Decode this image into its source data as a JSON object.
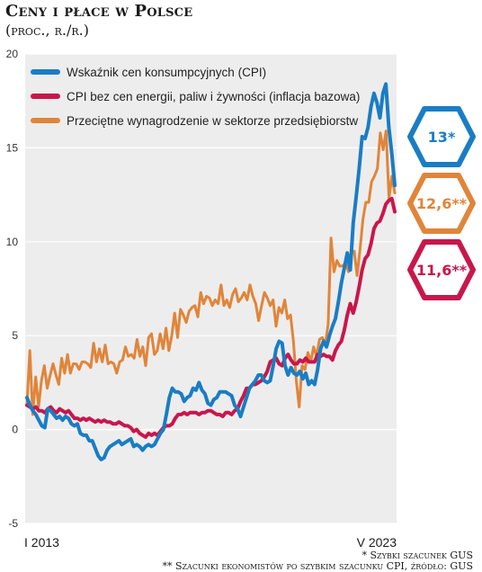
{
  "header": {
    "title": "Ceny i płace w Polsce",
    "subtitle": "(proc., r./r.)"
  },
  "footnotes": {
    "line1": "* Szybki szacunek GUS",
    "line2": "** Szacunki ekonomistów po szybkim szacunku CPI, źródło: GUS"
  },
  "colors": {
    "cpi": "#1a7dc4",
    "core": "#c8174d",
    "wages": "#e0853a",
    "plot_bg": "#ededed"
  },
  "chart_data": {
    "type": "line",
    "x_start": "I 2013",
    "x_end": "V 2023",
    "x_tick_labels": [
      "I 2013",
      "V 2023"
    ],
    "ylim": [
      -5,
      20
    ],
    "yticks": [
      -5,
      0,
      5,
      10,
      15,
      20
    ],
    "grid": true,
    "legend_position": "top-left",
    "series": [
      {
        "name": "Wskaźnik cen konsumpcyjnych (CPI)",
        "color": "#1a7dc4",
        "callout": "13*",
        "values": [
          1.7,
          1.3,
          1.0,
          0.8,
          0.5,
          0.2,
          0.1,
          1.1,
          1.0,
          0.8,
          0.6,
          0.7,
          0.5,
          0.7,
          0.6,
          0.3,
          0.2,
          0.3,
          -0.2,
          -0.3,
          -0.3,
          -0.6,
          -0.6,
          -1.0,
          -1.4,
          -1.6,
          -1.5,
          -1.1,
          -0.9,
          -0.8,
          -0.7,
          -0.6,
          -0.8,
          -0.7,
          -0.6,
          -0.5,
          -0.9,
          -0.8,
          -0.9,
          -1.1,
          -0.9,
          -0.8,
          -0.9,
          -0.8,
          -0.5,
          -0.2,
          0.0,
          0.8,
          1.7,
          2.2,
          2.0,
          2.0,
          1.9,
          1.5,
          1.7,
          1.8,
          2.2,
          2.1,
          2.5,
          2.1,
          1.9,
          1.4,
          1.3,
          1.6,
          1.7,
          2.0,
          2.0,
          2.0,
          1.9,
          1.8,
          1.3,
          1.1,
          0.7,
          1.2,
          1.7,
          2.2,
          2.4,
          2.6,
          2.9,
          2.9,
          2.6,
          2.5,
          2.6,
          3.4,
          4.3,
          4.7,
          4.6,
          3.4,
          2.9,
          3.3,
          3.0,
          2.9,
          3.1,
          2.7,
          3.0,
          2.4,
          2.6,
          2.4,
          3.2,
          4.3,
          4.7,
          4.4,
          5.0,
          5.5,
          5.9,
          6.8,
          7.8,
          8.6,
          9.4,
          8.5,
          11.0,
          12.4,
          13.9,
          15.6,
          15.5,
          16.1,
          17.2,
          17.9,
          17.4,
          16.6,
          17.9,
          18.4,
          16.1,
          14.7,
          13.0
        ]
      },
      {
        "name": "CPI bez cen energii, paliw i żywności (inflacja bazowa)",
        "color": "#c8174d",
        "callout": "11,6**",
        "values": [
          1.3,
          1.2,
          1.1,
          1.2,
          1.0,
          1.0,
          0.9,
          1.1,
          1.2,
          1.0,
          0.9,
          1.1,
          1.0,
          0.9,
          1.0,
          0.8,
          0.6,
          0.6,
          0.5,
          0.6,
          0.5,
          0.6,
          0.5,
          0.4,
          0.5,
          0.4,
          0.5,
          0.4,
          0.4,
          0.3,
          0.3,
          0.4,
          0.3,
          0.2,
          0.2,
          0.1,
          -0.1,
          0.0,
          -0.2,
          -0.3,
          -0.4,
          -0.2,
          -0.3,
          -0.2,
          -0.3,
          -0.1,
          0.1,
          0.2,
          0.2,
          0.3,
          0.6,
          0.8,
          0.8,
          0.9,
          0.8,
          0.9,
          0.9,
          0.9,
          0.8,
          0.9,
          0.9,
          1.0,
          1.0,
          0.9,
          0.8,
          0.8,
          0.7,
          0.9,
          0.9,
          0.8,
          1.0,
          1.1,
          1.5,
          1.8,
          2.2,
          2.2,
          2.4,
          2.4,
          2.5,
          2.6,
          2.8,
          3.1,
          3.6,
          3.7,
          3.8,
          3.5,
          3.4,
          3.8,
          4.0,
          3.7,
          3.5,
          3.5,
          3.7,
          3.6,
          3.8,
          3.6,
          3.6,
          3.6,
          4.0,
          3.9,
          4.0,
          3.9,
          3.9,
          3.7,
          4.2,
          4.5,
          4.7,
          5.3,
          6.1,
          6.7,
          6.2,
          6.8,
          7.6,
          8.5,
          9.1,
          9.3,
          9.9,
          10.7,
          11.0,
          11.1,
          11.5,
          12.0,
          12.2,
          12.3,
          11.6
        ]
      },
      {
        "name": "Przeciętne wynagrodzenie w sektorze przedsiębiorstw",
        "color": "#e0853a",
        "callout": "12,6**",
        "values": [
          1.4,
          4.2,
          0.8,
          2.8,
          1.2,
          2.6,
          3.4,
          2.2,
          2.9,
          3.5,
          2.9,
          2.4,
          3.8,
          3.0,
          4.0,
          3.0,
          3.5,
          3.5,
          3.2,
          3.6,
          3.6,
          3.5,
          3.3,
          4.6,
          3.6,
          4.3,
          3.6,
          4.5,
          3.5,
          3.6,
          3.5,
          3.0,
          3.6,
          3.7,
          4.4,
          3.9,
          4.0,
          3.8,
          4.8,
          3.9,
          4.4,
          3.4,
          4.9,
          5.1,
          4.0,
          4.2,
          5.1,
          4.3,
          5.4,
          4.2,
          5.0,
          6.2,
          4.9,
          6.4,
          6.1,
          5.7,
          6.3,
          6.5,
          6.6,
          6.0,
          7.3,
          6.7,
          7.1,
          7.0,
          6.6,
          6.9,
          6.7,
          7.7,
          6.6,
          6.9,
          6.5,
          7.2,
          7.5,
          6.8,
          7.0,
          7.3,
          6.9,
          7.7,
          7.1,
          6.7,
          5.8,
          6.6,
          7.3,
          7.0,
          6.6,
          6.9,
          5.5,
          6.5,
          6.2,
          6.9,
          5.9,
          6.1,
          4.7,
          2.6,
          1.2,
          3.4,
          3.2,
          4.1,
          3.6,
          4.4,
          3.9,
          4.8,
          4.9,
          4.5,
          5.6,
          10.2,
          8.4,
          9.0,
          8.7,
          8.7,
          8.9,
          8.4,
          9.4,
          9.5,
          8.2,
          9.6,
          11.2,
          12.1,
          12.1,
          13.2,
          13.5,
          13.9,
          15.8,
          14.9,
          15.9,
          12.3,
          13.5,
          12.6
        ]
      }
    ]
  }
}
